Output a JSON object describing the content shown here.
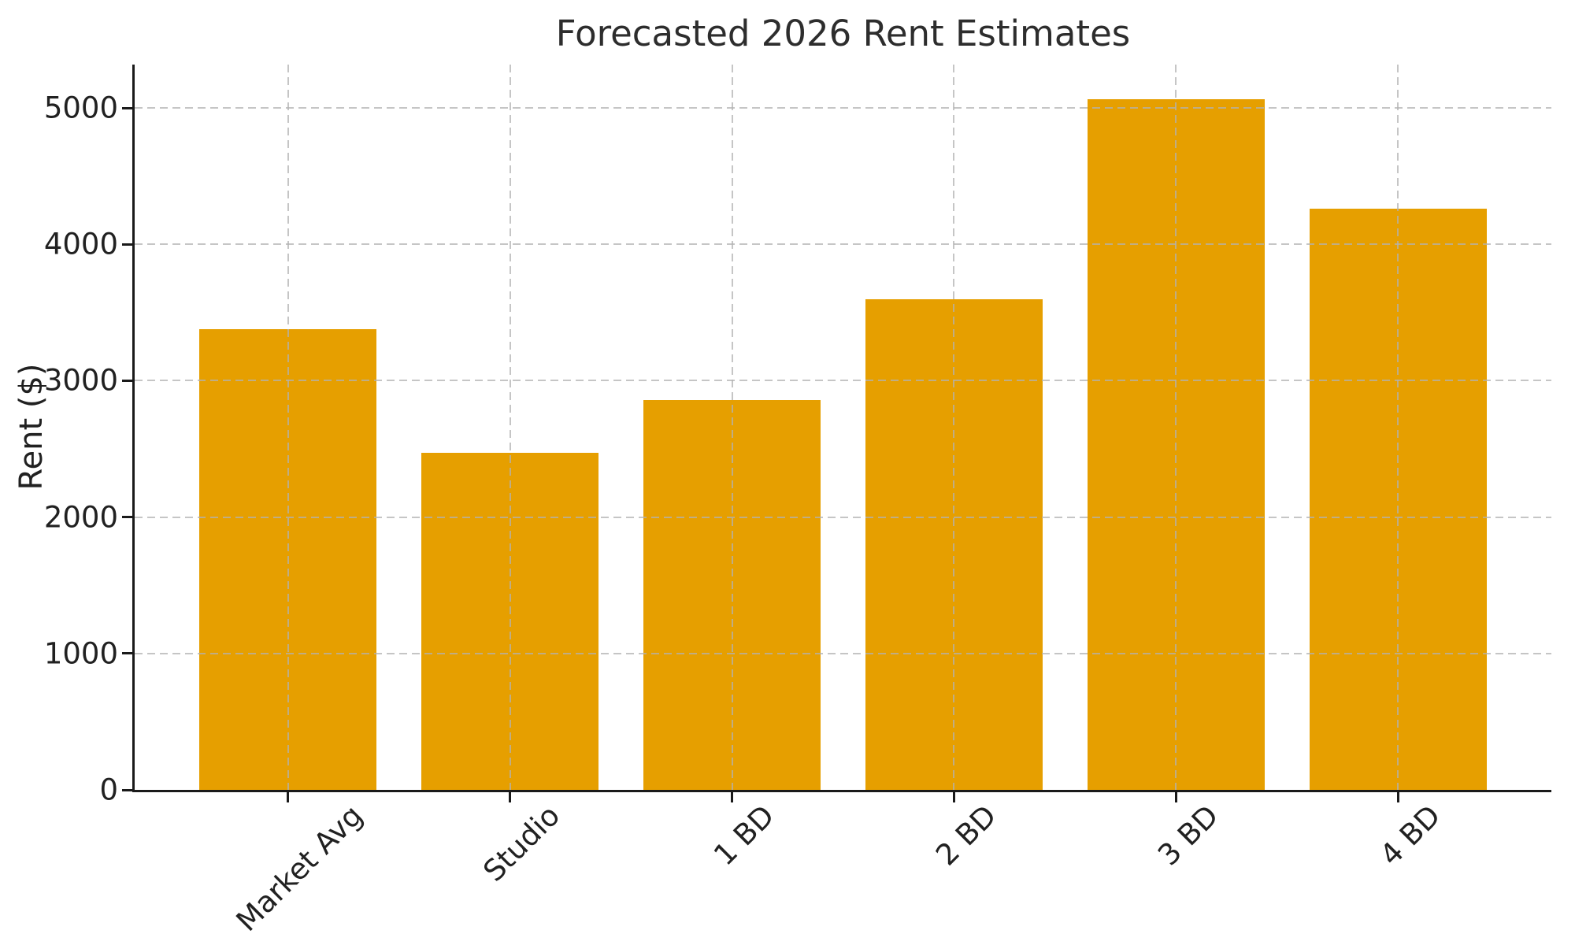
{
  "figure": {
    "background": "#ffffff"
  },
  "chart_data": {
    "type": "bar",
    "title": "Forecasted 2026 Rent Estimates",
    "xlabel": "",
    "ylabel": "Rent ($)",
    "categories": [
      "Market Avg",
      "Studio",
      "1 BD",
      "2 BD",
      "3 BD",
      "4 BD"
    ],
    "values": [
      3380,
      2470,
      2860,
      3600,
      5065,
      4260
    ],
    "y_ticks": [
      0,
      1000,
      2000,
      3000,
      4000,
      5000
    ],
    "ylim": [
      0,
      5318
    ],
    "xlim": [
      -0.69,
      5.69
    ],
    "bar_width_units": 0.8,
    "bar_color": "#E69F00",
    "grid": "both, dashed, drawn over bars",
    "grid_color": "#c9c9c9",
    "axis_color": "#1a1a1a",
    "text_color": "#212121",
    "x_tick_rotation_deg": 45,
    "legend_position": "none"
  }
}
